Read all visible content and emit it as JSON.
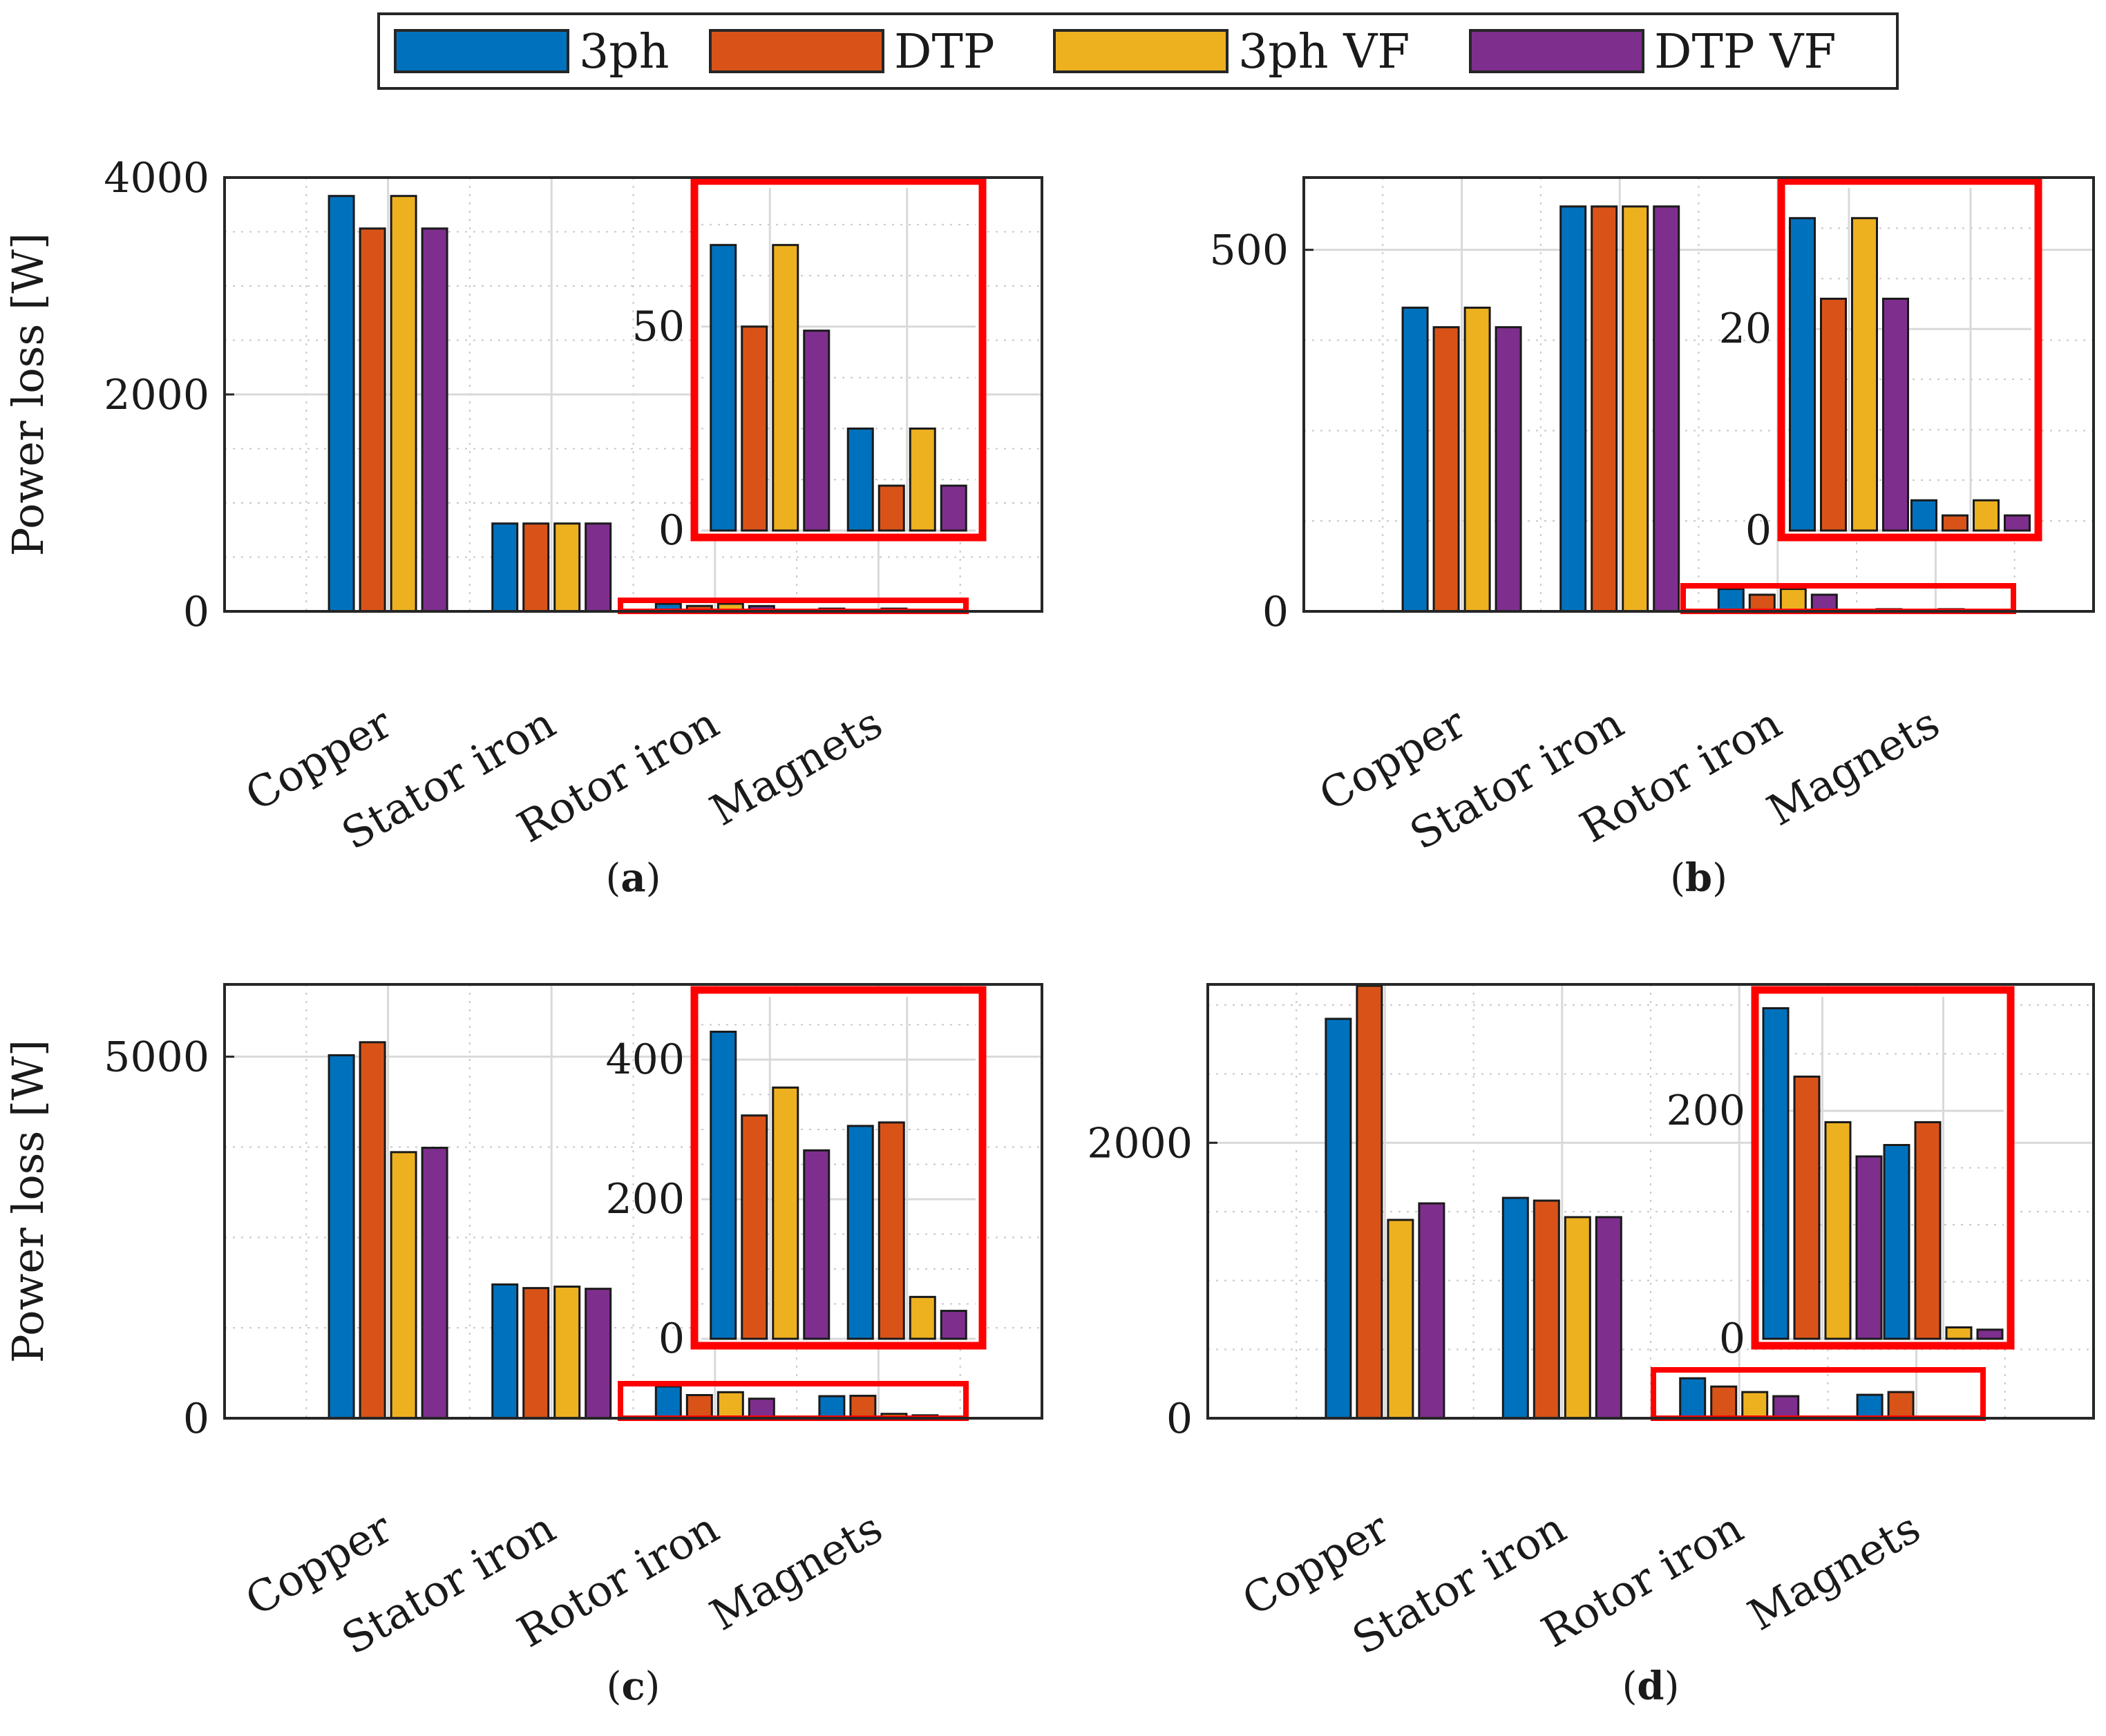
{
  "legend": [
    {
      "label": "3ph",
      "color": "#0072BD"
    },
    {
      "label": "DTP",
      "color": "#D95319"
    },
    {
      "label": "3ph VF",
      "color": "#EDB120"
    },
    {
      "label": "DTP VF",
      "color": "#7E2F8E"
    }
  ],
  "highlight_color": "#FF0000",
  "chart_data": [
    {
      "type": "bar",
      "label": "a",
      "ylabel": "Power loss [W]",
      "categories": [
        "Copper",
        "Stator iron",
        "Rotor iron",
        "Magnets"
      ],
      "ylim": [
        0,
        4000
      ],
      "yticks": [
        0,
        2000,
        4000
      ],
      "series": [
        {
          "name": "3ph",
          "values": [
            3830,
            810,
            70,
            25
          ]
        },
        {
          "name": "DTP",
          "values": [
            3530,
            810,
            50,
            11
          ]
        },
        {
          "name": "3ph VF",
          "values": [
            3830,
            810,
            70,
            25
          ]
        },
        {
          "name": "DTP VF",
          "values": [
            3530,
            810,
            49,
            11
          ]
        }
      ],
      "inset": {
        "categories": [
          "Rotor iron",
          "Magnets"
        ],
        "ylim": [
          0,
          84
        ],
        "yticks": [
          0,
          50
        ]
      }
    },
    {
      "type": "bar",
      "label": "b",
      "ylabel": "",
      "categories": [
        "Copper",
        "Stator iron",
        "Rotor iron",
        "Magnets"
      ],
      "ylim": [
        0,
        600
      ],
      "yticks": [
        0,
        500
      ],
      "series": [
        {
          "name": "3ph",
          "values": [
            420,
            560,
            31,
            3
          ]
        },
        {
          "name": "DTP",
          "values": [
            393,
            560,
            23,
            1.5
          ]
        },
        {
          "name": "3ph VF",
          "values": [
            420,
            560,
            31,
            3
          ]
        },
        {
          "name": "DTP VF",
          "values": [
            393,
            560,
            23,
            1.5
          ]
        }
      ],
      "inset": {
        "categories": [
          "Rotor iron",
          "Magnets"
        ],
        "ylim": [
          0,
          34
        ],
        "yticks": [
          0,
          20
        ]
      }
    },
    {
      "type": "bar",
      "label": "c",
      "ylabel": "Power loss [W]",
      "categories": [
        "Copper",
        "Stator iron",
        "Rotor iron",
        "Magnets"
      ],
      "ylim": [
        0,
        6000
      ],
      "yticks": [
        0,
        5000
      ],
      "series": [
        {
          "name": "3ph",
          "values": [
            5020,
            1850,
            440,
            305
          ]
        },
        {
          "name": "DTP",
          "values": [
            5200,
            1800,
            320,
            310
          ]
        },
        {
          "name": "3ph VF",
          "values": [
            3680,
            1820,
            360,
            60
          ]
        },
        {
          "name": "DTP VF",
          "values": [
            3740,
            1790,
            270,
            40
          ]
        }
      ],
      "inset": {
        "categories": [
          "Rotor iron",
          "Magnets"
        ],
        "ylim": [
          0,
          490
        ],
        "yticks": [
          0,
          200,
          400
        ]
      }
    },
    {
      "type": "bar",
      "label": "d",
      "ylabel": "",
      "categories": [
        "Copper",
        "Stator iron",
        "Rotor iron",
        "Magnets"
      ],
      "ylim": [
        0,
        3150
      ],
      "yticks": [
        0,
        2000
      ],
      "series": [
        {
          "name": "3ph",
          "values": [
            2900,
            1600,
            290,
            170
          ]
        },
        {
          "name": "DTP",
          "values": [
            3140,
            1580,
            230,
            190
          ]
        },
        {
          "name": "3ph VF",
          "values": [
            1440,
            1460,
            190,
            10
          ]
        },
        {
          "name": "DTP VF",
          "values": [
            1560,
            1460,
            160,
            8
          ]
        }
      ],
      "inset": {
        "categories": [
          "Rotor iron",
          "Magnets"
        ],
        "ylim": [
          0,
          300
        ],
        "yticks": [
          0,
          200
        ]
      }
    }
  ]
}
